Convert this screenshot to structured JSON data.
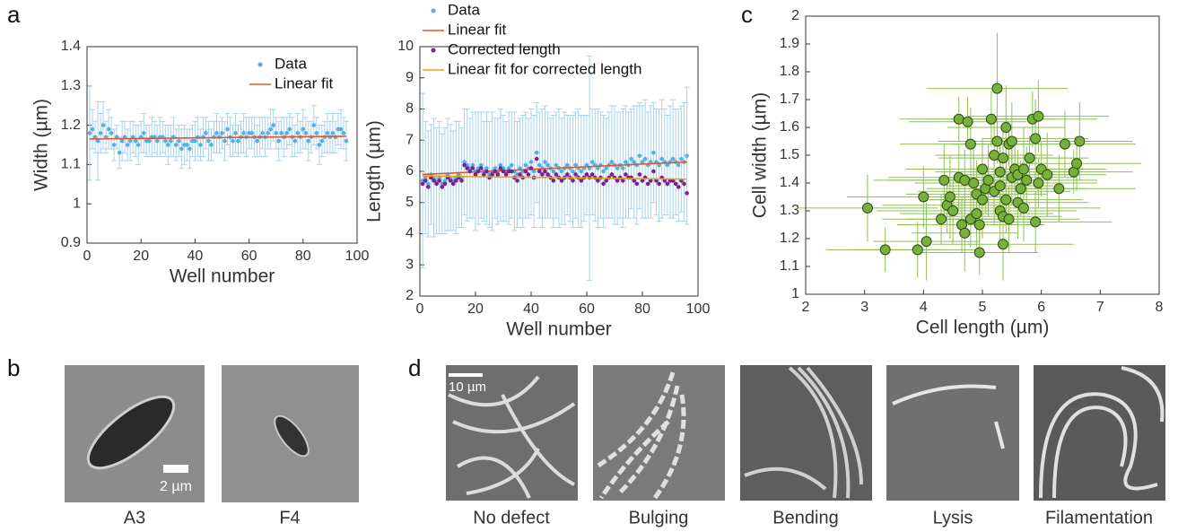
{
  "chart_data": [
    {
      "type": "scatter",
      "xlabel": "Well number",
      "ylabel": "Width (µm)",
      "legend": "upper right",
      "xlim": [
        0,
        100
      ],
      "xticks": [
        0,
        20,
        40,
        60,
        80,
        100
      ],
      "ylim": [
        0.9,
        1.4
      ],
      "yticks": [
        0.9,
        1,
        1.1,
        1.2,
        1.3,
        1.4
      ],
      "x": [
        1,
        2,
        3,
        4,
        5,
        6,
        7,
        8,
        9,
        10,
        11,
        12,
        13,
        14,
        15,
        16,
        17,
        18,
        19,
        20,
        21,
        22,
        23,
        24,
        25,
        26,
        27,
        28,
        29,
        30,
        31,
        32,
        33,
        34,
        35,
        36,
        37,
        38,
        39,
        40,
        41,
        42,
        43,
        44,
        45,
        46,
        47,
        48,
        49,
        50,
        51,
        52,
        53,
        54,
        55,
        56,
        57,
        58,
        59,
        60,
        61,
        62,
        63,
        64,
        65,
        66,
        67,
        68,
        69,
        70,
        71,
        72,
        73,
        74,
        75,
        76,
        77,
        78,
        79,
        80,
        81,
        82,
        83,
        84,
        85,
        86,
        87,
        88,
        89,
        90,
        91,
        92,
        93,
        94,
        95,
        96
      ],
      "series": [
        {
          "name": "Data",
          "color": "#56aee2",
          "mode": "markers",
          "values": [
            1.18,
            1.19,
            1.17,
            1.16,
            1.18,
            1.2,
            1.17,
            1.19,
            1.18,
            1.15,
            1.17,
            1.13,
            1.16,
            1.17,
            1.15,
            1.16,
            1.17,
            1.16,
            1.15,
            1.17,
            1.18,
            1.16,
            1.16,
            1.17,
            1.17,
            1.16,
            1.17,
            1.17,
            1.16,
            1.15,
            1.16,
            1.17,
            1.15,
            1.16,
            1.14,
            1.15,
            1.15,
            1.14,
            1.16,
            1.16,
            1.17,
            1.15,
            1.17,
            1.18,
            1.16,
            1.15,
            1.17,
            1.18,
            1.17,
            1.18,
            1.16,
            1.19,
            1.17,
            1.16,
            1.18,
            1.16,
            1.17,
            1.18,
            1.17,
            1.18,
            1.18,
            1.17,
            1.16,
            1.17,
            1.18,
            1.17,
            1.18,
            1.19,
            1.2,
            1.18,
            1.16,
            1.18,
            1.17,
            1.18,
            1.19,
            1.17,
            1.16,
            1.18,
            1.17,
            1.19,
            1.18,
            1.16,
            1.17,
            1.2,
            1.18,
            1.15,
            1.16,
            1.17,
            1.18,
            1.17,
            1.18,
            1.17,
            1.19,
            1.19,
            1.18,
            1.16
          ],
          "errors": [
            0.12,
            0.05,
            0.04,
            0.1,
            0.05,
            0.06,
            0.04,
            0.05,
            0.04,
            0.04,
            0.03,
            0.04,
            0.05,
            0.04,
            0.04,
            0.05,
            0.04,
            0.04,
            0.05,
            0.04,
            0.05,
            0.04,
            0.04,
            0.05,
            0.04,
            0.04,
            0.05,
            0.04,
            0.04,
            0.05,
            0.04,
            0.05,
            0.04,
            0.04,
            0.05,
            0.05,
            0.04,
            0.05,
            0.04,
            0.05,
            0.05,
            0.04,
            0.05,
            0.04,
            0.05,
            0.04,
            0.04,
            0.05,
            0.04,
            0.04,
            0.05,
            0.04,
            0.05,
            0.04,
            0.05,
            0.04,
            0.04,
            0.05,
            0.05,
            0.04,
            0.04,
            0.05,
            0.04,
            0.05,
            0.04,
            0.05,
            0.04,
            0.05,
            0.04,
            0.04,
            0.05,
            0.04,
            0.05,
            0.04,
            0.04,
            0.05,
            0.04,
            0.05,
            0.04,
            0.05,
            0.04,
            0.05,
            0.04,
            0.05,
            0.04,
            0.05,
            0.04,
            0.04,
            0.05,
            0.04,
            0.05,
            0.04,
            0.04,
            0.05,
            0.04,
            0.05
          ]
        },
        {
          "name": "Linear fit",
          "color": "#e2572b",
          "mode": "line",
          "x": [
            1,
            96
          ],
          "values": [
            1.165,
            1.172
          ]
        }
      ]
    },
    {
      "type": "scatter",
      "xlabel": "Well number",
      "ylabel": "Length (µm)",
      "legend": "upper left",
      "xlim": [
        0,
        100
      ],
      "xticks": [
        0,
        20,
        40,
        60,
        80,
        100
      ],
      "ylim": [
        2,
        10
      ],
      "yticks": [
        2,
        3,
        4,
        5,
        6,
        7,
        8,
        9,
        10
      ],
      "x": [
        1,
        2,
        3,
        4,
        5,
        6,
        7,
        8,
        9,
        10,
        11,
        12,
        13,
        14,
        15,
        16,
        17,
        18,
        19,
        20,
        21,
        22,
        23,
        24,
        25,
        26,
        27,
        28,
        29,
        30,
        31,
        32,
        33,
        34,
        35,
        36,
        37,
        38,
        39,
        40,
        41,
        42,
        43,
        44,
        45,
        46,
        47,
        48,
        49,
        50,
        51,
        52,
        53,
        54,
        55,
        56,
        57,
        58,
        59,
        60,
        61,
        62,
        63,
        64,
        65,
        66,
        67,
        68,
        69,
        70,
        71,
        72,
        73,
        74,
        75,
        76,
        77,
        78,
        79,
        80,
        81,
        82,
        83,
        84,
        85,
        86,
        87,
        88,
        89,
        90,
        91,
        92,
        93,
        94,
        95,
        96
      ],
      "series": [
        {
          "name": "Data",
          "color": "#56aee2",
          "mode": "markers",
          "values": [
            5.7,
            5.8,
            5.6,
            5.9,
            5.8,
            5.7,
            5.8,
            5.6,
            5.7,
            5.9,
            5.8,
            5.7,
            5.8,
            5.9,
            5.8,
            6.3,
            6.2,
            6.1,
            6.2,
            6.0,
            6.1,
            6.2,
            6.0,
            6.1,
            5.9,
            6.0,
            6.1,
            6.0,
            6.2,
            6.1,
            6.0,
            6.1,
            6.2,
            6.0,
            5.9,
            6.1,
            6.0,
            6.2,
            6.1,
            6.3,
            6.0,
            6.6,
            6.2,
            6.1,
            6.3,
            6.2,
            6.1,
            6.0,
            6.2,
            6.1,
            6.0,
            6.1,
            6.2,
            6.1,
            6.0,
            6.2,
            6.1,
            6.0,
            6.1,
            6.2,
            6.1,
            6.3,
            6.2,
            6.1,
            6.2,
            6.0,
            6.1,
            6.2,
            6.3,
            6.2,
            6.1,
            6.2,
            6.1,
            6.3,
            6.2,
            6.4,
            6.3,
            6.2,
            6.5,
            6.3,
            6.4,
            6.2,
            6.3,
            6.6,
            6.3,
            6.2,
            6.4,
            6.3,
            6.2,
            6.3,
            6.4,
            6.3,
            6.2,
            6.4,
            6.3,
            6.5
          ],
          "errors": [
            2.8,
            1.8,
            1.7,
            1.6,
            1.9,
            1.7,
            1.8,
            1.6,
            1.7,
            1.8,
            1.7,
            1.6,
            1.8,
            1.7,
            1.6,
            1.7,
            1.8,
            1.6,
            1.7,
            1.9,
            1.8,
            1.7,
            1.6,
            1.8,
            1.7,
            1.9,
            1.6,
            1.7,
            1.8,
            1.7,
            1.6,
            1.8,
            1.7,
            1.9,
            1.7,
            1.6,
            1.8,
            1.7,
            1.6,
            1.7,
            1.8,
            1.6,
            1.7,
            1.9,
            1.8,
            1.7,
            1.6,
            1.8,
            1.7,
            1.9,
            1.7,
            1.8,
            1.6,
            1.7,
            1.8,
            1.7,
            1.9,
            1.8,
            1.7,
            1.6,
            3.6,
            1.7,
            1.8,
            1.9,
            1.7,
            1.8,
            1.6,
            1.7,
            1.8,
            1.9,
            1.8,
            1.7,
            1.9,
            1.8,
            1.7,
            1.6,
            1.8,
            1.9,
            1.7,
            1.8,
            1.9,
            1.7,
            1.8,
            1.6,
            1.7,
            1.8,
            1.9,
            1.7,
            1.6,
            1.8,
            1.9,
            1.7,
            1.8,
            1.7,
            1.9,
            2.2
          ]
        },
        {
          "name": "Linear fit",
          "color": "#e2572b",
          "mode": "line",
          "x": [
            1,
            96
          ],
          "values": [
            5.9,
            6.3
          ]
        },
        {
          "name": "Corrected length",
          "color": "#7a1f8f",
          "mode": "markers",
          "values": [
            5.6,
            5.7,
            5.5,
            5.8,
            5.7,
            5.6,
            5.7,
            5.5,
            5.6,
            5.8,
            5.7,
            5.6,
            5.7,
            5.8,
            5.7,
            6.2,
            6.1,
            6.0,
            6.1,
            5.9,
            6.0,
            6.1,
            5.9,
            6.0,
            5.8,
            5.9,
            6.0,
            5.9,
            6.1,
            6.0,
            5.9,
            6.0,
            6.0,
            5.8,
            5.7,
            5.9,
            5.8,
            6.0,
            5.9,
            6.1,
            5.8,
            6.4,
            6.0,
            5.9,
            6.0,
            5.9,
            5.8,
            5.7,
            5.9,
            5.8,
            5.7,
            5.8,
            5.9,
            5.8,
            5.7,
            5.9,
            5.8,
            5.7,
            5.8,
            5.9,
            5.8,
            5.9,
            5.8,
            5.7,
            5.8,
            5.6,
            5.7,
            5.8,
            5.9,
            5.8,
            5.7,
            5.8,
            5.7,
            5.9,
            5.8,
            5.8,
            5.7,
            5.6,
            5.9,
            5.7,
            5.8,
            5.6,
            5.7,
            6.0,
            5.7,
            5.6,
            5.8,
            5.7,
            5.6,
            5.7,
            5.7,
            5.6,
            5.5,
            5.7,
            5.6,
            5.3
          ]
        },
        {
          "name": "Linear fit for corrected length",
          "color": "#e8a317",
          "mode": "line",
          "x": [
            1,
            96
          ],
          "values": [
            5.85,
            5.75
          ]
        }
      ]
    },
    {
      "type": "scatter",
      "xlabel": "Cell length (µm)",
      "ylabel": "Cell width (µm)",
      "xlim": [
        2,
        8
      ],
      "xticks": [
        2,
        3,
        4,
        5,
        6,
        7,
        8
      ],
      "ylim": [
        1,
        2
      ],
      "yticks": [
        1,
        1.1,
        1.2,
        1.3,
        1.4,
        1.5,
        1.6,
        1.7,
        1.8,
        1.9,
        2
      ],
      "series": [
        {
          "color": "#77b03b",
          "mode": "markers",
          "x": [
            3.05,
            3.35,
            3.9,
            4.05,
            4.0,
            4.3,
            4.35,
            4.4,
            4.45,
            4.5,
            4.6,
            4.6,
            4.65,
            4.7,
            4.7,
            4.75,
            4.8,
            4.8,
            4.85,
            4.9,
            4.9,
            4.95,
            4.95,
            5.0,
            5.0,
            5.05,
            5.1,
            5.15,
            5.2,
            5.2,
            5.25,
            5.25,
            5.3,
            5.3,
            5.3,
            5.35,
            5.35,
            5.35,
            5.4,
            5.4,
            5.45,
            5.45,
            5.5,
            5.5,
            5.55,
            5.6,
            5.6,
            5.65,
            5.7,
            5.7,
            5.75,
            5.8,
            5.85,
            5.9,
            5.9,
            5.95,
            5.95,
            6.0,
            6.1,
            6.3,
            6.4,
            6.55,
            6.6,
            6.65
          ],
          "values": [
            1.31,
            1.16,
            1.16,
            1.19,
            1.35,
            1.27,
            1.41,
            1.32,
            1.35,
            1.3,
            1.42,
            1.63,
            1.25,
            1.22,
            1.41,
            1.62,
            1.54,
            1.27,
            1.4,
            1.29,
            1.36,
            1.15,
            1.25,
            1.34,
            1.45,
            1.38,
            1.41,
            1.63,
            1.5,
            1.37,
            1.74,
            1.55,
            1.44,
            1.39,
            1.3,
            1.28,
            1.18,
            1.49,
            1.6,
            1.34,
            1.27,
            1.54,
            1.42,
            1.55,
            1.45,
            1.43,
            1.33,
            1.38,
            1.45,
            1.31,
            1.41,
            1.49,
            1.63,
            1.56,
            1.26,
            1.4,
            1.64,
            1.45,
            1.43,
            1.38,
            1.54,
            1.44,
            1.47,
            1.55
          ],
          "xerr": [
            1.2,
            1.0,
            1.1,
            0.9,
            1.3,
            1.0,
            1.2,
            1.1,
            1.0,
            1.3,
            1.2,
            1.0,
            1.1,
            0.9,
            1.3,
            1.0,
            1.2,
            1.1,
            1.0,
            1.3,
            1.2,
            1.0,
            1.1,
            0.9,
            1.3,
            1.0,
            1.2,
            1.1,
            1.0,
            1.3,
            1.2,
            1.0,
            1.1,
            0.9,
            1.3,
            1.0,
            1.2,
            1.1,
            1.0,
            1.3,
            1.2,
            1.0,
            1.1,
            0.9,
            1.3,
            1.0,
            1.2,
            1.1,
            1.0,
            1.3,
            1.2,
            1.0,
            1.1,
            0.9,
            1.3,
            1.0,
            1.2,
            1.1,
            1.0,
            1.3,
            1.2,
            1.0,
            1.1,
            0.9
          ],
          "yerr": [
            0.12,
            0.08,
            0.1,
            0.14,
            0.11,
            0.09,
            0.13,
            0.1,
            0.15,
            0.12,
            0.12,
            0.08,
            0.1,
            0.14,
            0.11,
            0.09,
            0.13,
            0.1,
            0.15,
            0.12,
            0.12,
            0.08,
            0.1,
            0.14,
            0.11,
            0.09,
            0.13,
            0.1,
            0.15,
            0.12,
            0.2,
            0.08,
            0.1,
            0.14,
            0.11,
            0.09,
            0.13,
            0.1,
            0.15,
            0.12,
            0.12,
            0.08,
            0.1,
            0.14,
            0.11,
            0.09,
            0.13,
            0.1,
            0.15,
            0.12,
            0.12,
            0.08,
            0.1,
            0.14,
            0.11,
            0.09,
            0.13,
            0.1,
            0.15,
            0.12,
            0.12,
            0.08,
            0.1,
            0.14
          ]
        }
      ]
    }
  ],
  "panel_labels": [
    "a",
    "b",
    "c",
    "d"
  ],
  "panel_b": {
    "scale_bar": "2 µm",
    "labels": [
      "A3",
      "F4"
    ]
  },
  "panel_d": {
    "scale_bar": "10 µm",
    "labels": [
      "No defect",
      "Bulging",
      "Bending",
      "Lysis",
      "Filamentation"
    ]
  }
}
